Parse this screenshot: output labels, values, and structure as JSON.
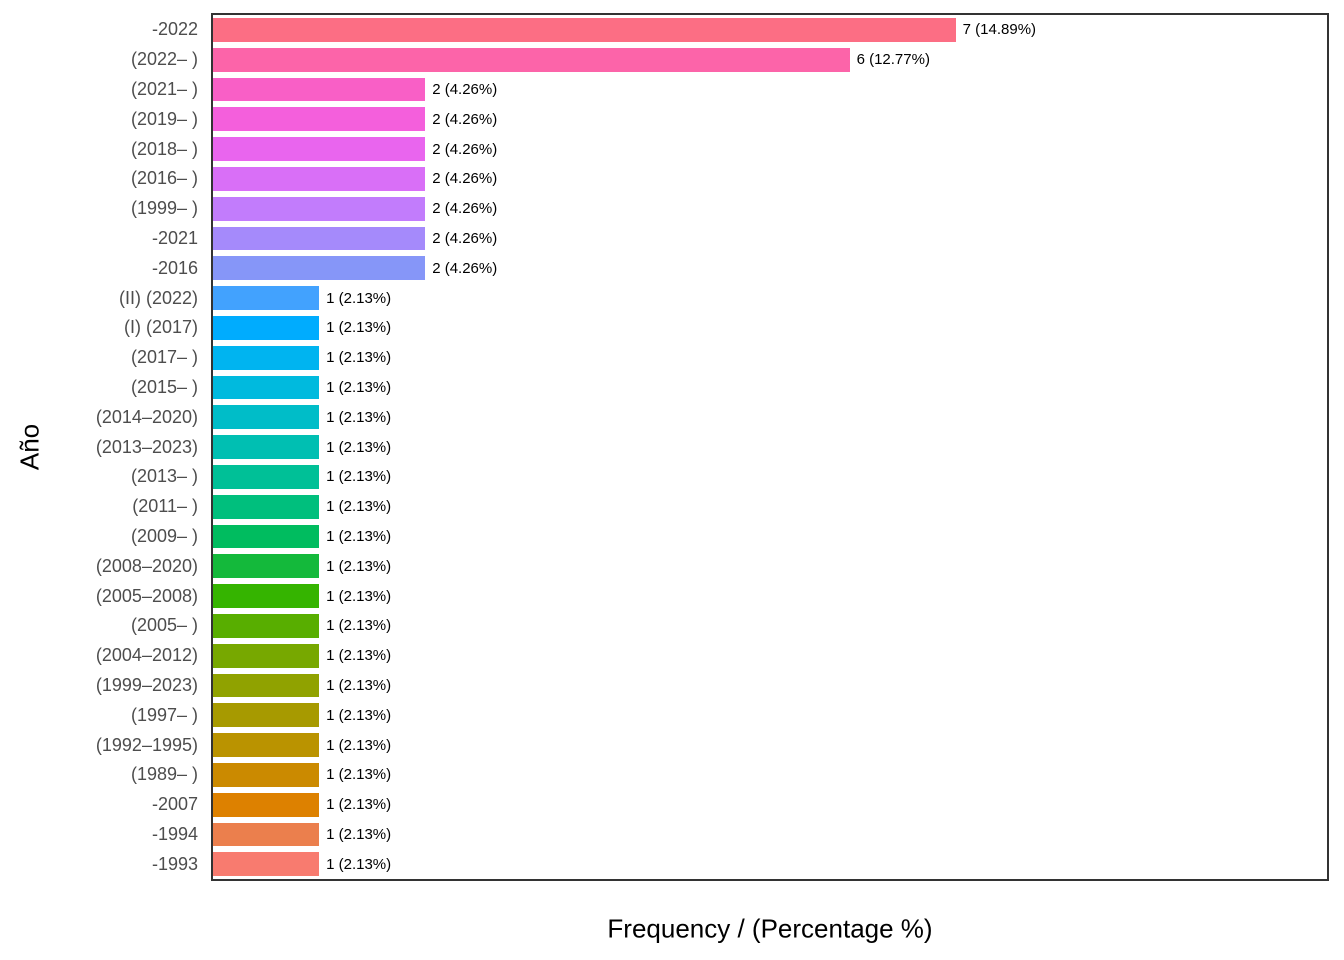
{
  "chart_data": {
    "type": "bar",
    "orientation": "horizontal",
    "title": "",
    "xlabel": "Frequency / (Percentage %)",
    "ylabel": "Año",
    "xlim": [
      0,
      10.5
    ],
    "grid": false,
    "legend_position": "none",
    "background": "#FFFFFF",
    "panel_border_color": "#333333",
    "axis_text_color": "#4D4D4D",
    "axis_title_color": "#000000",
    "categories": [
      "-2022",
      "(2022– )",
      "(2021– )",
      "(2019– )",
      "(2018– )",
      "(2016– )",
      "(1999– )",
      "-2021",
      "-2016",
      "(II) (2022)",
      "(I) (2017)",
      "(2017– )",
      "(2015– )",
      "(2014–2020)",
      "(2013–2023)",
      "(2013– )",
      "(2011– )",
      "(2009– )",
      "(2008–2020)",
      "(2005–2008)",
      "(2005– )",
      "(2004–2012)",
      "(1999–2023)",
      "(1997– )",
      "(1992–1995)",
      "(1989– )",
      "-2007",
      "-1994",
      "-1993"
    ],
    "values": [
      7,
      6,
      2,
      2,
      2,
      2,
      2,
      2,
      2,
      1,
      1,
      1,
      1,
      1,
      1,
      1,
      1,
      1,
      1,
      1,
      1,
      1,
      1,
      1,
      1,
      1,
      1,
      1,
      1
    ],
    "bar_labels": [
      "7 (14.89%)",
      "6 (12.77%)",
      "2 (4.26%)",
      "2 (4.26%)",
      "2 (4.26%)",
      "2 (4.26%)",
      "2 (4.26%)",
      "2 (4.26%)",
      "2 (4.26%)",
      "1 (2.13%)",
      "1 (2.13%)",
      "1 (2.13%)",
      "1 (2.13%)",
      "1 (2.13%)",
      "1 (2.13%)",
      "1 (2.13%)",
      "1 (2.13%)",
      "1 (2.13%)",
      "1 (2.13%)",
      "1 (2.13%)",
      "1 (2.13%)",
      "1 (2.13%)",
      "1 (2.13%)",
      "1 (2.13%)",
      "1 (2.13%)",
      "1 (2.13%)",
      "1 (2.13%)",
      "1 (2.13%)",
      "1 (2.13%)"
    ],
    "colors": [
      "#FC6E84",
      "#FC64A9",
      "#F95FC6",
      "#F45FDC",
      "#E965EE",
      "#D96FF7",
      "#C27CFC",
      "#A58AFB",
      "#8696F8",
      "#42A2FE",
      "#00ACFE",
      "#00B4F0",
      "#00BADE",
      "#00BDC8",
      "#00BFB2",
      "#00C097",
      "#00BF7D",
      "#00BC5F",
      "#14B93B",
      "#35B400",
      "#58AE00",
      "#77A800",
      "#90A200",
      "#A79A00",
      "#BA9300",
      "#CB8A00",
      "#DD8100",
      "#EB7F4D",
      "#F87B6F"
    ]
  }
}
